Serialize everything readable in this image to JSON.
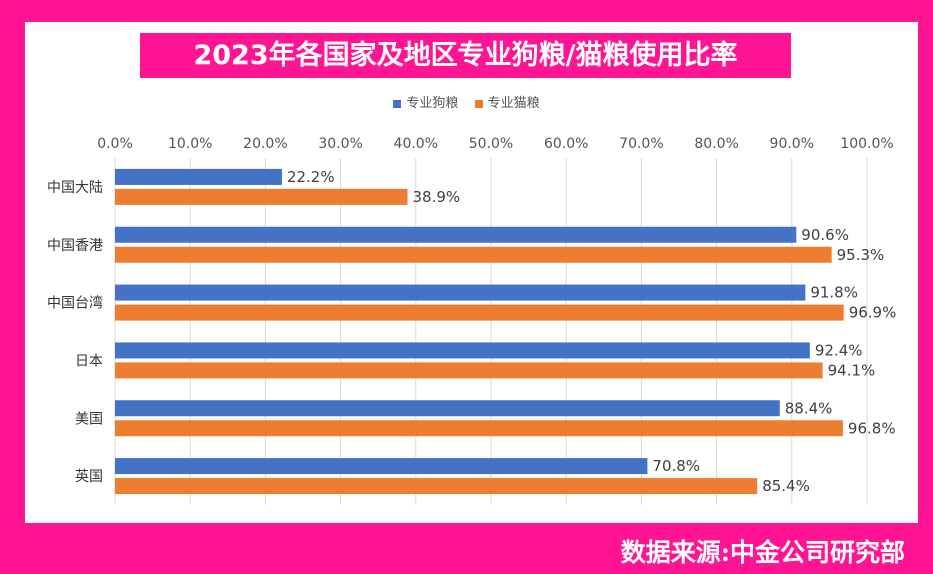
{
  "title": "2023年各国家及地区专业狗粮/猫粮使用比率",
  "source": "数据来源:中金公司研究部",
  "colors": {
    "background": "#ff1493",
    "panel": "#ffffff",
    "title_bg": "#ff1493",
    "dog": "#4472c4",
    "cat": "#ed7d31"
  },
  "chart_data": {
    "type": "bar",
    "orientation": "horizontal",
    "title": "2023年各国家及地区专业狗粮/猫粮使用比率",
    "categories": [
      "中国大陆",
      "中国香港",
      "中国台湾",
      "日本",
      "美国",
      "英国"
    ],
    "series": [
      {
        "name": "专业狗粮",
        "color": "#4472c4",
        "values": [
          22.2,
          90.6,
          91.8,
          92.4,
          88.4,
          70.8
        ],
        "labels": [
          "22.2%",
          "90.6%",
          "91.8%",
          "92.4%",
          "88.4%",
          "70.8%"
        ]
      },
      {
        "name": "专业猫粮",
        "color": "#ed7d31",
        "values": [
          38.9,
          95.3,
          96.9,
          94.1,
          96.8,
          85.4
        ],
        "labels": [
          "38.9%",
          "95.3%",
          "96.9%",
          "94.1%",
          "96.8%",
          "85.4%"
        ]
      }
    ],
    "xlim": [
      0,
      100
    ],
    "xticks": [
      "0.0%",
      "10.0%",
      "20.0%",
      "30.0%",
      "40.0%",
      "50.0%",
      "60.0%",
      "70.0%",
      "80.0%",
      "90.0%",
      "100.0%"
    ],
    "xaxis_position": "top",
    "grid": true,
    "legend_position": "top"
  }
}
